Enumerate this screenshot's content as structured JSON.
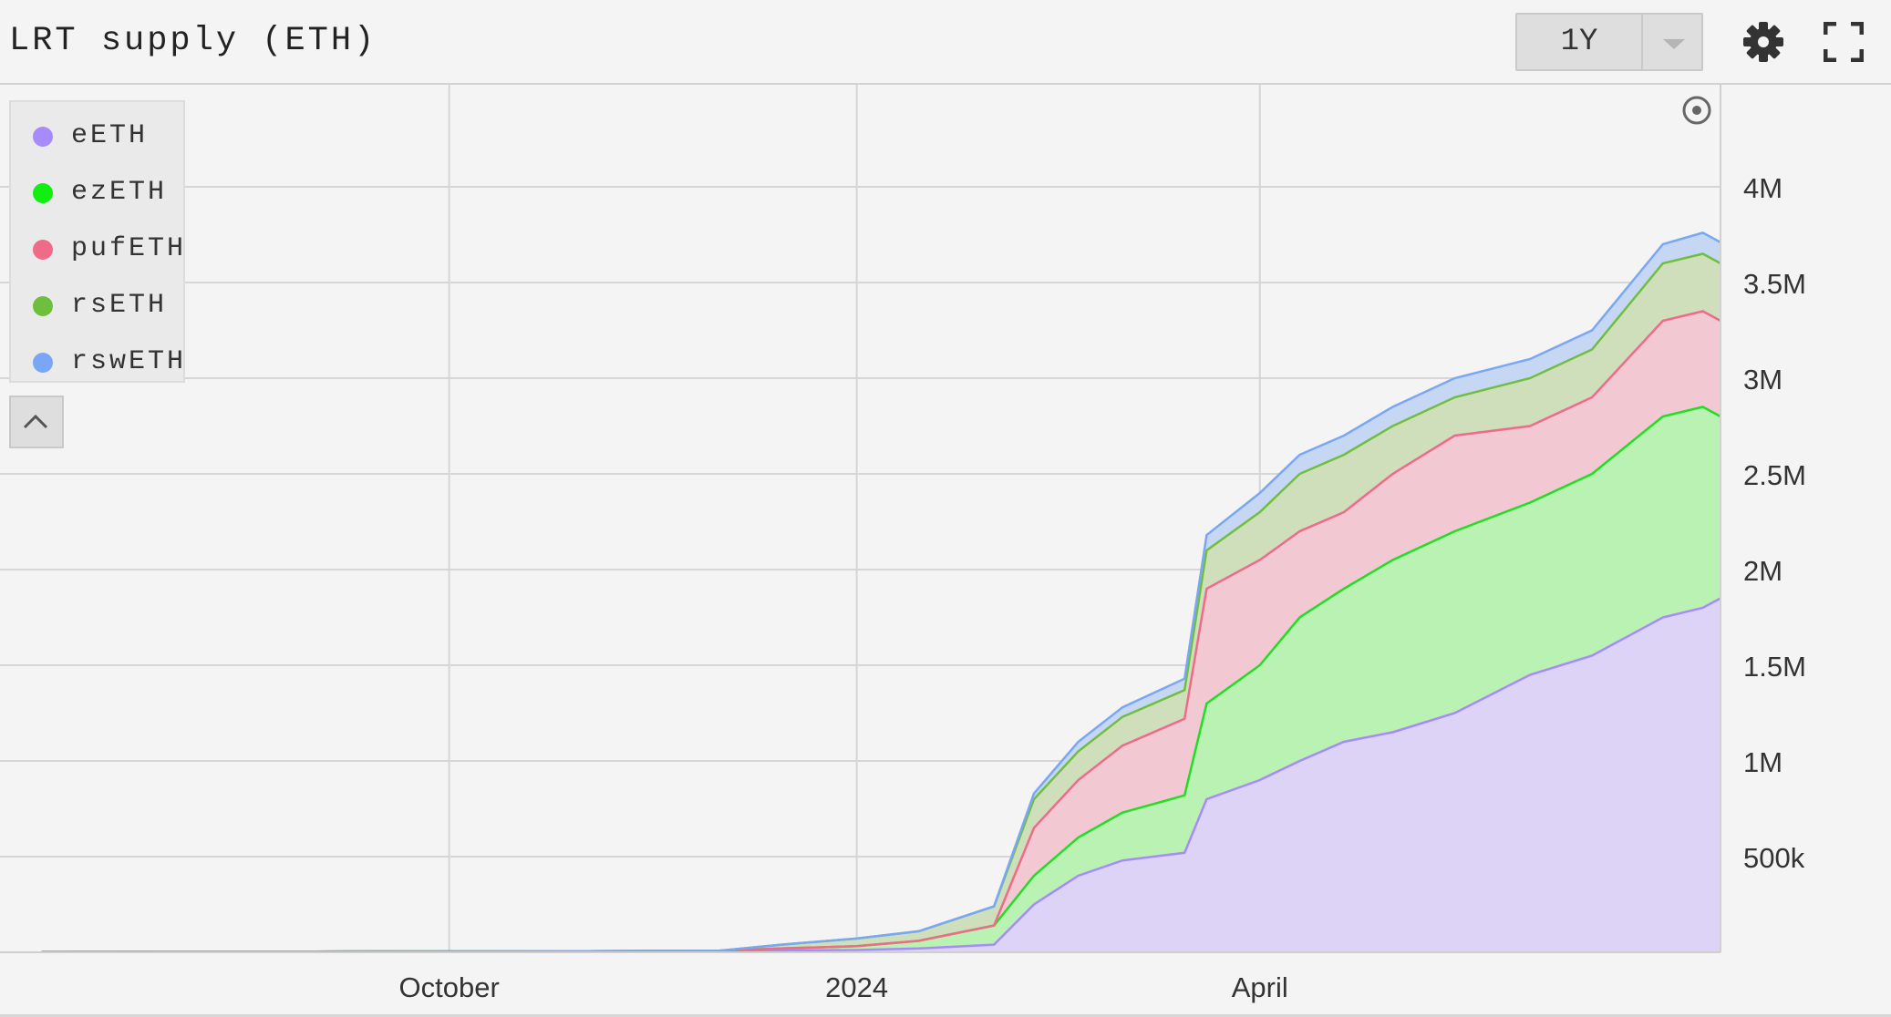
{
  "header": {
    "title": "LRT supply (ETH)",
    "range_label": "1Y"
  },
  "icons": {
    "settings": "gear-icon",
    "fullscreen": "fullscreen-icon",
    "collapse": "chevron-up-icon",
    "reset": "target-icon"
  },
  "chart_data": {
    "type": "area",
    "stacked": true,
    "legend_position": "top-left",
    "grid": true,
    "y_side": "right",
    "ylim": [
      0,
      4500000
    ],
    "y_ticks": [
      {
        "value": 500000,
        "label": "500k"
      },
      {
        "value": 1000000,
        "label": "1M"
      },
      {
        "value": 1500000,
        "label": "1.5M"
      },
      {
        "value": 2000000,
        "label": "2M"
      },
      {
        "value": 2500000,
        "label": "2.5M"
      },
      {
        "value": 3000000,
        "label": "3M"
      },
      {
        "value": 3500000,
        "label": "3.5M"
      },
      {
        "value": 4000000,
        "label": "4M"
      }
    ],
    "xlim": [
      "2023-06-22",
      "2024-07-14"
    ],
    "x_ticks": [
      {
        "value": "2023-10-01",
        "label": "October"
      },
      {
        "value": "2024-01-01",
        "label": "2024"
      },
      {
        "value": "2024-04-01",
        "label": "April"
      }
    ],
    "x": [
      "2023-07-01",
      "2023-08-01",
      "2023-09-01",
      "2023-10-01",
      "2023-11-01",
      "2023-12-01",
      "2023-12-15",
      "2024-01-01",
      "2024-01-15",
      "2024-02-01",
      "2024-02-10",
      "2024-02-20",
      "2024-03-01",
      "2024-03-15",
      "2024-03-20",
      "2024-04-01",
      "2024-04-10",
      "2024-04-20",
      "2024-05-01",
      "2024-05-15",
      "2024-06-01",
      "2024-06-15",
      "2024-07-01",
      "2024-07-10",
      "2024-07-14"
    ],
    "series": [
      {
        "name": "eETH",
        "color": "#a78bfa",
        "fill": "#dcd3f7",
        "values": [
          2000,
          3000,
          4000,
          5000,
          6000,
          8000,
          10000,
          12000,
          20000,
          40000,
          250000,
          400000,
          480000,
          520000,
          800000,
          900000,
          1000000,
          1100000,
          1150000,
          1250000,
          1450000,
          1550000,
          1750000,
          1800000,
          1850000
        ]
      },
      {
        "name": "ezETH",
        "color": "#22dd22",
        "fill": "#b9f2b3",
        "values": [
          0,
          0,
          0,
          0,
          0,
          0,
          10000,
          20000,
          40000,
          100000,
          150000,
          200000,
          250000,
          300000,
          500000,
          600000,
          750000,
          800000,
          900000,
          950000,
          900000,
          950000,
          1050000,
          1050000,
          950000
        ]
      },
      {
        "name": "pufETH",
        "color": "#ee6b8a",
        "fill": "#f2c9d3",
        "values": [
          0,
          0,
          0,
          0,
          0,
          0,
          0,
          0,
          0,
          0,
          250000,
          300000,
          350000,
          400000,
          600000,
          550000,
          450000,
          400000,
          450000,
          500000,
          400000,
          400000,
          500000,
          500000,
          500000
        ]
      },
      {
        "name": "rsETH",
        "color": "#6fbf3f",
        "fill": "#cfdfbb",
        "values": [
          0,
          0,
          0,
          0,
          0,
          0,
          20000,
          40000,
          50000,
          100000,
          150000,
          150000,
          150000,
          150000,
          200000,
          250000,
          300000,
          300000,
          250000,
          200000,
          250000,
          250000,
          300000,
          300000,
          300000
        ]
      },
      {
        "name": "rswETH",
        "color": "#7aa7f5",
        "fill": "#c6d7f3",
        "values": [
          0,
          0,
          0,
          0,
          0,
          0,
          0,
          0,
          0,
          0,
          30000,
          50000,
          50000,
          60000,
          80000,
          100000,
          100000,
          100000,
          100000,
          100000,
          100000,
          100000,
          100000,
          110000,
          110000
        ]
      }
    ]
  }
}
